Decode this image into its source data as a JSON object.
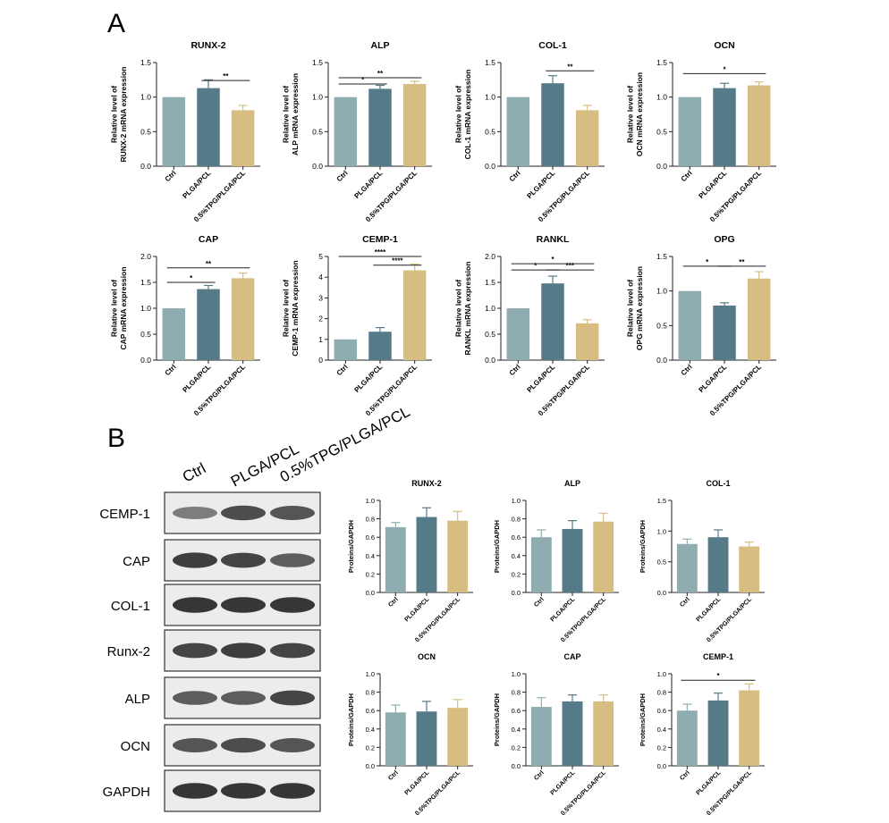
{
  "panels": {
    "a": "A",
    "b": "B"
  },
  "colors": {
    "ctrl": "#8fadb0",
    "plga": "#557a88",
    "tpg": "#d8bd83",
    "err": "#6d8f96"
  },
  "chart_data": [
    {
      "type": "bar",
      "title": "RUNX-2",
      "ylabel_lines": [
        "Relative level of",
        "RUNX-2 mRNA expression"
      ],
      "categories": [
        "Ctrl",
        "PLGA/PCL",
        "0.5%TPG/PLGA/PCL"
      ],
      "values": [
        1.0,
        1.13,
        0.81
      ],
      "errors": [
        0,
        0.12,
        0.07
      ],
      "ylim": [
        0,
        1.5
      ],
      "yticks": [
        "0.0",
        "0.5",
        "1.0",
        "1.5"
      ],
      "sig": [
        {
          "from": 1,
          "to": 2,
          "label": "**",
          "y": 1.24
        }
      ]
    },
    {
      "type": "bar",
      "title": "ALP",
      "ylabel_lines": [
        "Relative level of",
        "ALP mRNA expression"
      ],
      "categories": [
        "Ctrl",
        "PLGA/PCL",
        "0.5%TPG/PLGA/PCL"
      ],
      "values": [
        1.0,
        1.12,
        1.19
      ],
      "errors": [
        0,
        0.05,
        0.04
      ],
      "ylim": [
        0,
        1.5
      ],
      "yticks": [
        "0.0",
        "0.5",
        "1.0",
        "1.5"
      ],
      "sig": [
        {
          "from": 0,
          "to": 1,
          "label": "*",
          "y": 1.19
        },
        {
          "from": 0,
          "to": 2,
          "label": "**",
          "y": 1.28
        }
      ]
    },
    {
      "type": "bar",
      "title": "COL-1",
      "ylabel_lines": [
        "Relative level of",
        "COL-1 mRNA expression"
      ],
      "categories": [
        "Ctrl",
        "PLGA/PCL",
        "0.5%TPG/PLGA/PCL"
      ],
      "values": [
        1.0,
        1.2,
        0.81
      ],
      "errors": [
        0,
        0.11,
        0.07
      ],
      "ylim": [
        0,
        1.5
      ],
      "yticks": [
        "0.0",
        "0.5",
        "1.0",
        "1.5"
      ],
      "sig": [
        {
          "from": 1,
          "to": 2,
          "label": "**",
          "y": 1.38
        }
      ]
    },
    {
      "type": "bar",
      "title": "OCN",
      "ylabel_lines": [
        "Relative level of",
        "OCN mRNA expression"
      ],
      "categories": [
        "Ctrl",
        "PLGA/PCL",
        "0.5%TPG/PLGA/PCL"
      ],
      "values": [
        1.0,
        1.13,
        1.17
      ],
      "errors": [
        0,
        0.07,
        0.05
      ],
      "ylim": [
        0,
        1.5
      ],
      "yticks": [
        "0.0",
        "0.5",
        "1.0",
        "1.5"
      ],
      "sig": [
        {
          "from": 0,
          "to": 2,
          "label": "*",
          "y": 1.34
        }
      ]
    },
    {
      "type": "bar",
      "title": "CAP",
      "ylabel_lines": [
        "Relative level of",
        "CAP mRNA expression"
      ],
      "categories": [
        "Ctrl",
        "PLGA/PCL",
        "0.5%TPG/PLGA/PCL"
      ],
      "values": [
        1.0,
        1.37,
        1.58
      ],
      "errors": [
        0,
        0.07,
        0.1
      ],
      "ylim": [
        0,
        2.0
      ],
      "yticks": [
        "0.0",
        "0.5",
        "1.0",
        "1.5",
        "2.0"
      ],
      "sig": [
        {
          "from": 0,
          "to": 1,
          "label": "*",
          "y": 1.5
        },
        {
          "from": 0,
          "to": 2,
          "label": "**",
          "y": 1.78
        }
      ]
    },
    {
      "type": "bar",
      "title": "CEMP-1",
      "ylabel_lines": [
        "Relative level of",
        "CEMP-1 mRNA expression"
      ],
      "categories": [
        "Ctrl",
        "PLGA/PCL",
        "0.5%TPG/PLGA/PCL"
      ],
      "values": [
        1.0,
        1.37,
        4.33
      ],
      "errors": [
        0,
        0.2,
        0.3
      ],
      "ylim": [
        0,
        5
      ],
      "yticks": [
        "0",
        "1",
        "2",
        "3",
        "4",
        "5"
      ],
      "sig": [
        {
          "from": 1,
          "to": 2,
          "label": "****",
          "y": 4.58
        },
        {
          "from": 0,
          "to": 2,
          "label": "****",
          "y": 5.0
        }
      ]
    },
    {
      "type": "bar",
      "title": "RANKL",
      "ylabel_lines": [
        "Relative level of",
        "RANKL mRNA expression"
      ],
      "categories": [
        "Ctrl",
        "PLGA/PCL",
        "0.5%TPG/PLGA/PCL"
      ],
      "values": [
        1.0,
        1.48,
        0.71
      ],
      "errors": [
        0,
        0.14,
        0.07
      ],
      "ylim": [
        0,
        2.0
      ],
      "yticks": [
        "0.0",
        "0.5",
        "1.0",
        "1.5",
        "2.0"
      ],
      "sig": [
        {
          "from": 0,
          "to": 1,
          "label": "*",
          "y": 1.74
        },
        {
          "from": 1,
          "to": 2,
          "label": "***",
          "y": 1.74
        },
        {
          "from": 0,
          "to": 2,
          "label": "*",
          "y": 1.86
        }
      ]
    },
    {
      "type": "bar",
      "title": "OPG",
      "ylabel_lines": [
        "Relative level of",
        "OPG mRNA expression"
      ],
      "categories": [
        "Ctrl",
        "PLGA/PCL",
        "0.5%TPG/PLGA/PCL"
      ],
      "values": [
        1.0,
        0.79,
        1.18
      ],
      "errors": [
        0,
        0.04,
        0.1
      ],
      "ylim": [
        0,
        1.5
      ],
      "yticks": [
        "0.0",
        "0.5",
        "1.0",
        "1.5"
      ],
      "sig": [
        {
          "from": 0,
          "to": 1,
          "label": "*",
          "y": 1.36
        },
        {
          "from": 1,
          "to": 2,
          "label": "**",
          "y": 1.36
        }
      ]
    },
    {
      "type": "bar",
      "title": "RUNX-2",
      "ylabel_lines": [
        "Proteins/GAPDH"
      ],
      "categories": [
        "Ctrl",
        "PLGA/PCL",
        "0.5%TPG/PLGA/PCL"
      ],
      "values": [
        0.71,
        0.82,
        0.78
      ],
      "errors": [
        0.05,
        0.1,
        0.1
      ],
      "ylim": [
        0,
        1.0
      ],
      "yticks": [
        "0.0",
        "0.2",
        "0.4",
        "0.6",
        "0.8",
        "1.0"
      ],
      "sig": []
    },
    {
      "type": "bar",
      "title": "ALP",
      "ylabel_lines": [
        "Proteins/GAPDH"
      ],
      "categories": [
        "Ctrl",
        "PLGA/PCL",
        "0.5%TPG/PLGA/PCL"
      ],
      "values": [
        0.6,
        0.69,
        0.77
      ],
      "errors": [
        0.08,
        0.09,
        0.09
      ],
      "ylim": [
        0,
        1.0
      ],
      "yticks": [
        "0.0",
        "0.2",
        "0.4",
        "0.6",
        "0.8",
        "1.0"
      ],
      "sig": []
    },
    {
      "type": "bar",
      "title": "COL-1",
      "ylabel_lines": [
        "Proteins/GAPDH"
      ],
      "categories": [
        "Ctrl",
        "PLGA/PCL",
        "0.5%TPG/PLGA/PCL"
      ],
      "values": [
        0.79,
        0.9,
        0.75
      ],
      "errors": [
        0.08,
        0.12,
        0.07
      ],
      "ylim": [
        0,
        1.5
      ],
      "yticks": [
        "0.0",
        "0.5",
        "1.0",
        "1.5"
      ],
      "sig": []
    },
    {
      "type": "bar",
      "title": "OCN",
      "ylabel_lines": [
        "Proteins/GAPDH"
      ],
      "categories": [
        "Ctrl",
        "PLGA/PCL",
        "0.5%TPG/PLGA/PCL"
      ],
      "values": [
        0.58,
        0.59,
        0.63
      ],
      "errors": [
        0.08,
        0.11,
        0.09
      ],
      "ylim": [
        0,
        1.0
      ],
      "yticks": [
        "0.0",
        "0.2",
        "0.4",
        "0.6",
        "0.8",
        "1.0"
      ],
      "sig": []
    },
    {
      "type": "bar",
      "title": "CAP",
      "ylabel_lines": [
        "Proteins/GAPDH"
      ],
      "categories": [
        "Ctrl",
        "PLGA/PCL",
        "0.5%TPG/PLGA/PCL"
      ],
      "values": [
        0.64,
        0.7,
        0.7
      ],
      "errors": [
        0.1,
        0.07,
        0.07
      ],
      "ylim": [
        0,
        1.0
      ],
      "yticks": [
        "0.0",
        "0.2",
        "0.4",
        "0.6",
        "0.8",
        "1.0"
      ],
      "sig": []
    },
    {
      "type": "bar",
      "title": "CEMP-1",
      "ylabel_lines": [
        "Proteins/GAPDH"
      ],
      "categories": [
        "Ctrl",
        "PLGA/PCL",
        "0.5%TPG/PLGA/PCL"
      ],
      "values": [
        0.6,
        0.71,
        0.82
      ],
      "errors": [
        0.07,
        0.08,
        0.07
      ],
      "ylim": [
        0,
        1.0
      ],
      "yticks": [
        "0.0",
        "0.2",
        "0.4",
        "0.6",
        "0.8",
        "1.0"
      ],
      "sig": [
        {
          "from": 0,
          "to": 2,
          "label": "*",
          "y": 0.93
        }
      ]
    }
  ],
  "blot": {
    "lanes": [
      "Ctrl",
      "PLGA/PCL",
      "0.5%TPG/PLGA/PCL"
    ],
    "rows": [
      {
        "label": "CEMP-1",
        "intensity": [
          0.5,
          0.8,
          0.75
        ]
      },
      {
        "label": "CAP",
        "intensity": [
          0.9,
          0.85,
          0.7
        ]
      },
      {
        "label": "COL-1",
        "intensity": [
          0.95,
          0.95,
          0.95
        ]
      },
      {
        "label": "Runx-2",
        "intensity": [
          0.85,
          0.9,
          0.85
        ]
      },
      {
        "label": "ALP",
        "intensity": [
          0.7,
          0.7,
          0.85
        ]
      },
      {
        "label": "OCN",
        "intensity": [
          0.75,
          0.8,
          0.75
        ]
      },
      {
        "label": "GAPDH",
        "intensity": [
          0.95,
          0.95,
          0.95
        ]
      }
    ]
  }
}
